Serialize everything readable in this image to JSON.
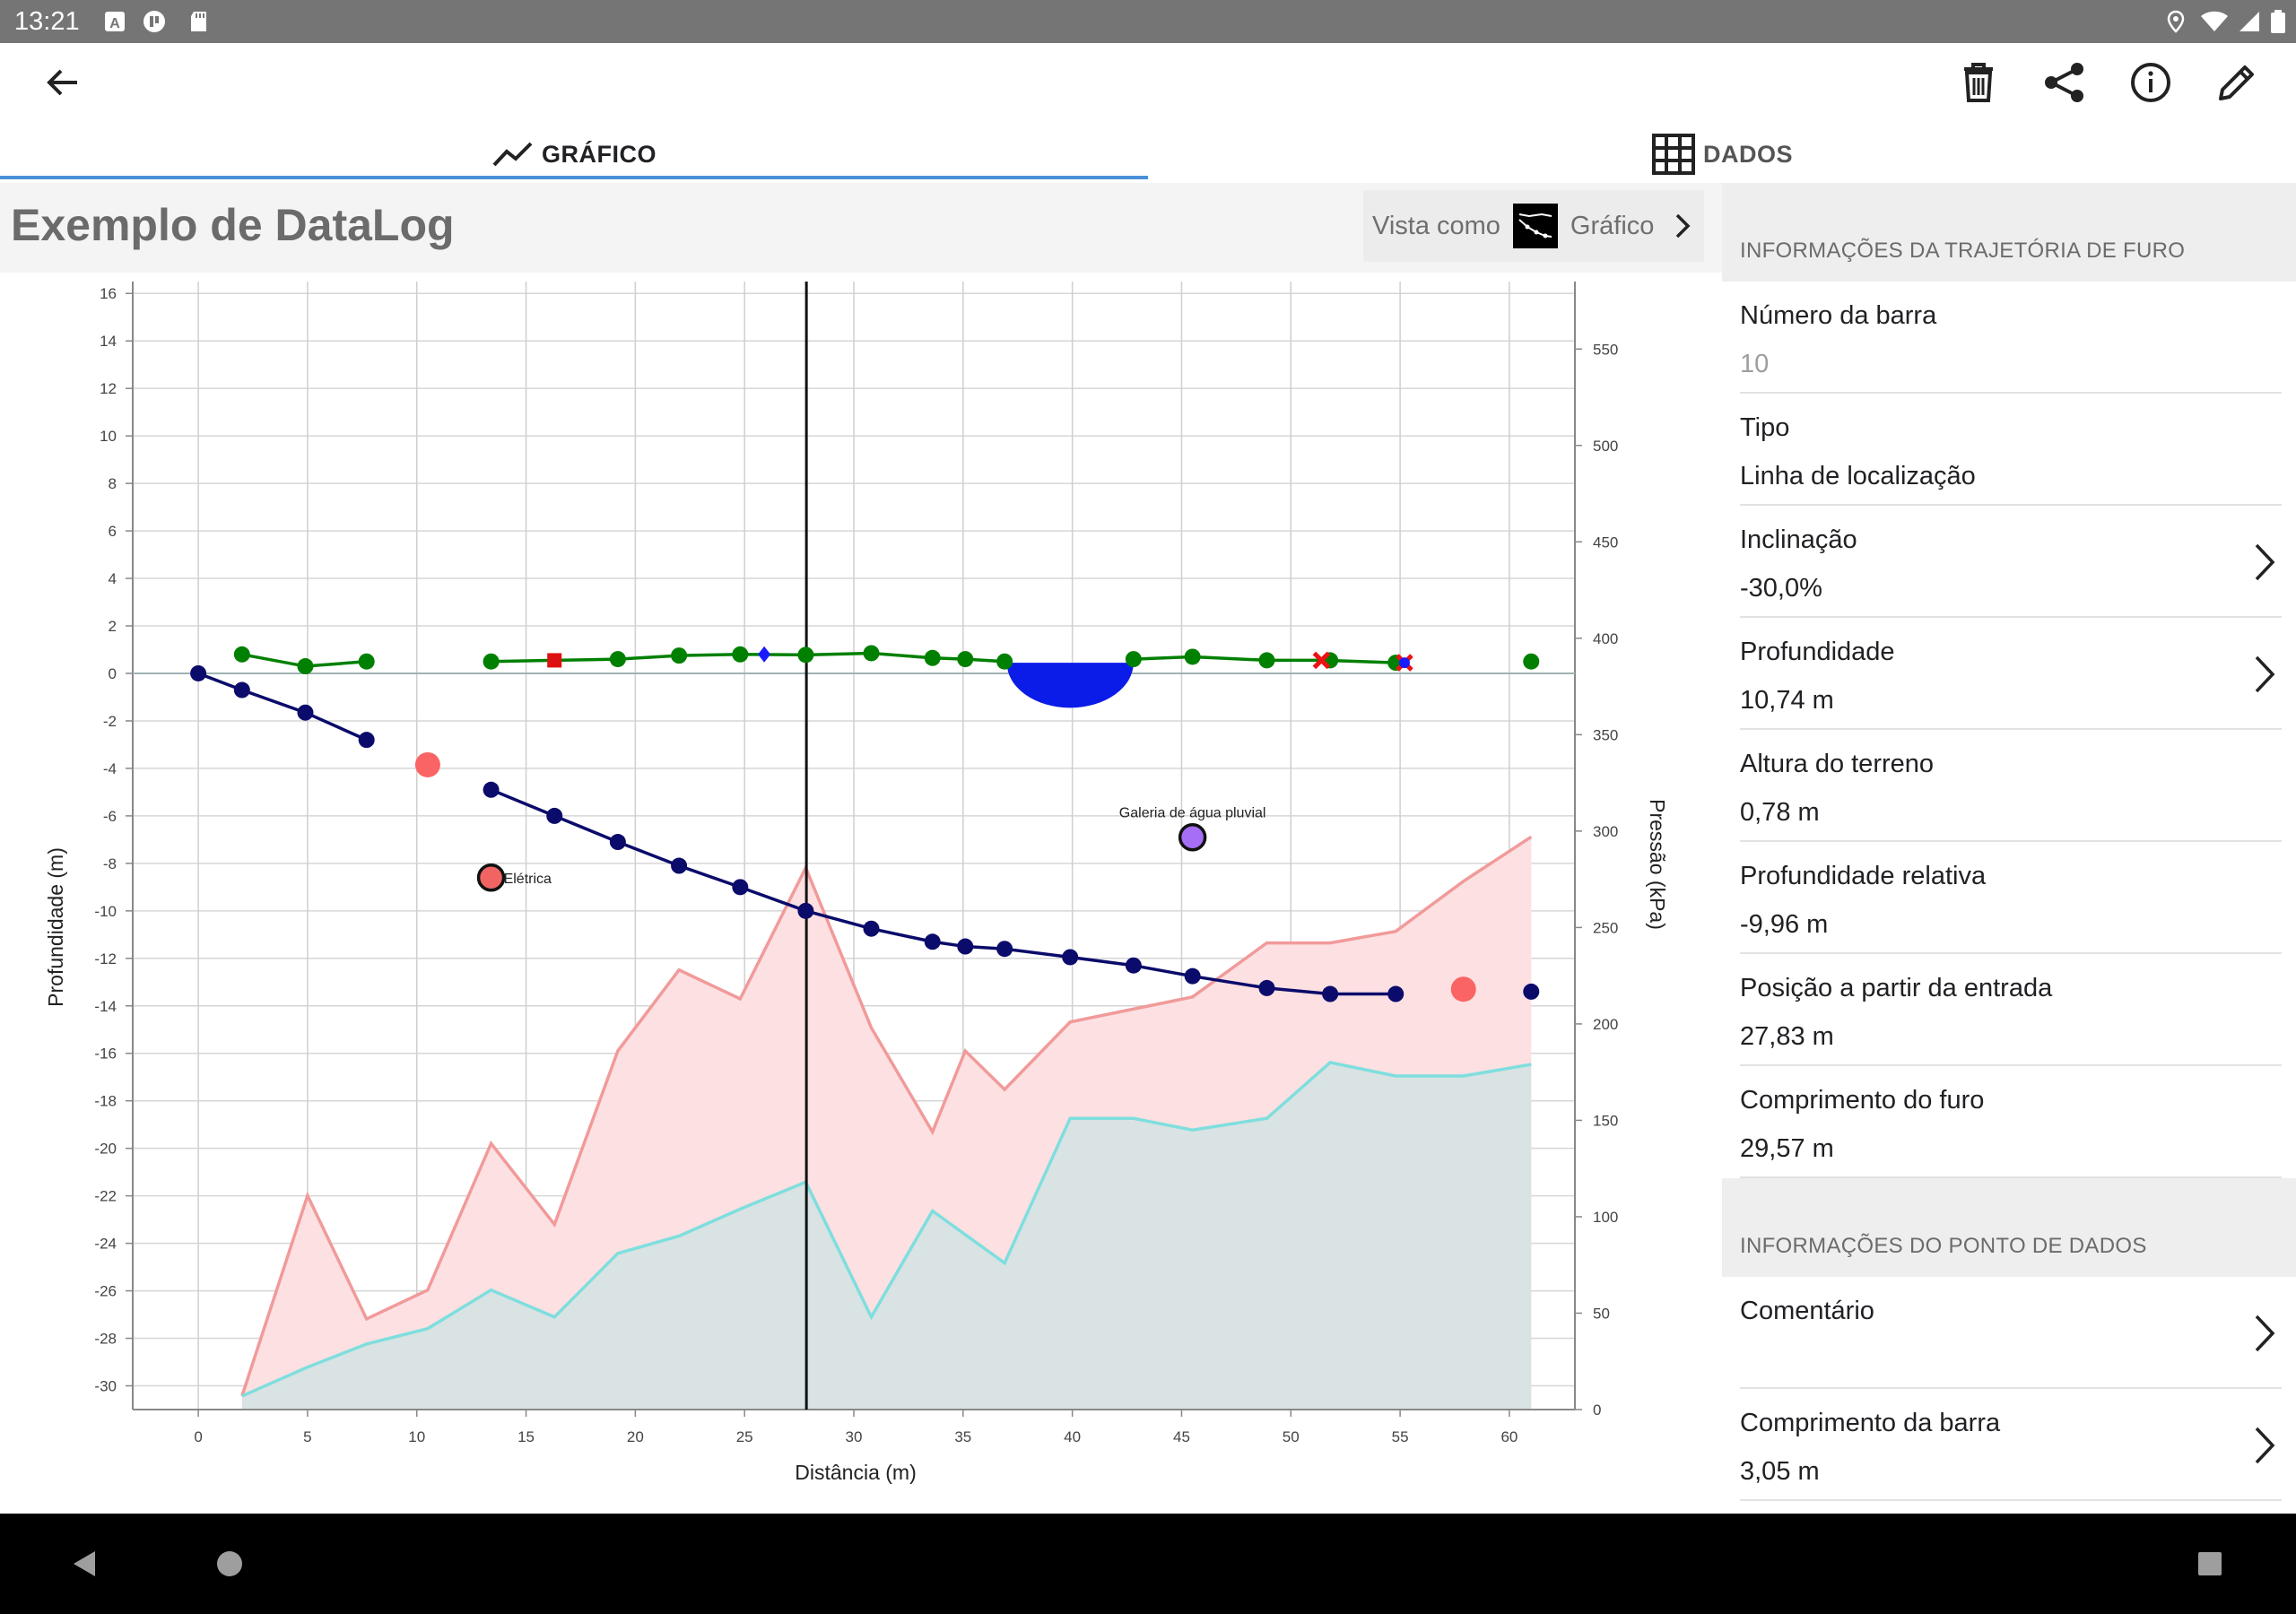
{
  "status": {
    "time": "13:21"
  },
  "appbar": {
    "back": "arrow-back-icon",
    "actions": [
      "delete-icon",
      "share-icon",
      "info-icon",
      "edit-icon"
    ]
  },
  "tabs": [
    {
      "label": "GRÁFICO",
      "icon": "line-chart-icon",
      "selected": true
    },
    {
      "label": "DADOS",
      "icon": "grid-icon",
      "selected": false
    }
  ],
  "header": {
    "title": "Exemplo de DataLog",
    "view_as_label": "Vista como",
    "view_as_value": "Gráfico"
  },
  "sidepanel": {
    "section1_title": "INFORMAÇÕES DA TRAJETÓRIA DE FURO",
    "section1": [
      {
        "label": "Número da barra",
        "value": "10",
        "muted": true,
        "chevron": false
      },
      {
        "label": "Tipo",
        "value": "Linha de localização",
        "chevron": false
      },
      {
        "label": "Inclinação",
        "value": "-30,0%",
        "chevron": true
      },
      {
        "label": "Profundidade",
        "value": "10,74 m",
        "chevron": true
      },
      {
        "label": "Altura do terreno",
        "value": "0,78 m",
        "chevron": false
      },
      {
        "label": "Profundidade relativa",
        "value": "-9,96 m",
        "chevron": false
      },
      {
        "label": "Posição a partir da entrada",
        "value": "27,83 m",
        "chevron": false
      },
      {
        "label": "Comprimento do furo",
        "value": "29,57 m",
        "chevron": false
      }
    ],
    "section2_title": "INFORMAÇÕES DO PONTO DE DADOS",
    "section2": [
      {
        "label": "Comentário",
        "value": "",
        "chevron": true
      },
      {
        "label": "Comprimento da barra",
        "value": "3,05 m",
        "chevron": true
      }
    ]
  },
  "chart_data": {
    "type": "line",
    "xlabel": "Distância (m)",
    "ylabel": "Profundidade (m)",
    "y2label": "Pressão (kPa)",
    "xlim": [
      -3,
      63
    ],
    "ylim": [
      -31,
      16.5
    ],
    "y2lim": [
      0,
      585
    ],
    "xticks": [
      0,
      5,
      10,
      15,
      20,
      25,
      30,
      35,
      40,
      45,
      50,
      55,
      60
    ],
    "yticks": [
      16,
      14,
      12,
      10,
      8,
      6,
      4,
      2,
      0,
      -2,
      -4,
      -6,
      -8,
      -10,
      -12,
      -14,
      -16,
      -18,
      -20,
      -22,
      -24,
      -26,
      -28,
      -30
    ],
    "y2ticks": [
      0,
      50,
      100,
      150,
      200,
      250,
      300,
      350,
      400,
      450,
      500,
      550
    ],
    "cursor_x": 27.83,
    "series": [
      {
        "role": "pressure-upper",
        "color": "#f19a9a",
        "fill": "#fde0e2",
        "axis": "right",
        "points": [
          [
            2,
            7
          ],
          [
            5,
            111
          ],
          [
            7.7,
            47
          ],
          [
            10.5,
            62
          ],
          [
            13.4,
            138
          ],
          [
            16.3,
            96
          ],
          [
            19.2,
            186
          ],
          [
            22,
            228
          ],
          [
            24.8,
            213
          ],
          [
            27.8,
            281
          ],
          [
            30.8,
            198
          ],
          [
            33.6,
            144
          ],
          [
            35.1,
            186
          ],
          [
            36.9,
            166
          ],
          [
            39.9,
            201
          ],
          [
            45.5,
            214
          ],
          [
            48.9,
            242
          ],
          [
            51.8,
            242
          ],
          [
            54.8,
            248
          ],
          [
            57.9,
            274
          ],
          [
            61,
            297
          ]
        ]
      },
      {
        "role": "pressure-lower",
        "color": "#7fdede",
        "fill": "#d9e3e3",
        "axis": "right",
        "points": [
          [
            2,
            7
          ],
          [
            5,
            22
          ],
          [
            7.7,
            34
          ],
          [
            10.5,
            42
          ],
          [
            13.4,
            62
          ],
          [
            16.3,
            48
          ],
          [
            19.2,
            81
          ],
          [
            22,
            90
          ],
          [
            24.8,
            104
          ],
          [
            27.8,
            118
          ],
          [
            30.8,
            48
          ],
          [
            33.6,
            103
          ],
          [
            36.9,
            76
          ],
          [
            39.9,
            151
          ],
          [
            42.8,
            151
          ],
          [
            45.5,
            145
          ],
          [
            48.9,
            151
          ],
          [
            51.8,
            180
          ],
          [
            54.8,
            173
          ],
          [
            57.9,
            173
          ],
          [
            61,
            179
          ]
        ]
      },
      {
        "role": "terrain",
        "color": "#008000",
        "axis": "left",
        "segments": [
          [
            [
              2,
              0.8
            ],
            [
              4.9,
              0.3
            ],
            [
              7.7,
              0.5
            ]
          ],
          [
            [
              13.4,
              0.5
            ],
            [
              16.3,
              0.55
            ],
            [
              19.2,
              0.6
            ],
            [
              22,
              0.75
            ],
            [
              24.8,
              0.8
            ],
            [
              27.8,
              0.78
            ],
            [
              30.8,
              0.85
            ],
            [
              33.6,
              0.65
            ],
            [
              35.1,
              0.6
            ],
            [
              36.9,
              0.5
            ]
          ],
          [
            [
              42.8,
              0.6
            ],
            [
              45.5,
              0.7
            ],
            [
              48.9,
              0.55
            ],
            [
              51.5,
              0.55
            ],
            [
              54.8,
              0.45
            ],
            [
              55.3,
              0.45
            ]
          ]
        ],
        "markers": [
          [
            2,
            0.8
          ],
          [
            4.9,
            0.3
          ],
          [
            7.7,
            0.5
          ],
          [
            13.4,
            0.5
          ],
          [
            19.2,
            0.6
          ],
          [
            22,
            0.75
          ],
          [
            24.8,
            0.8
          ],
          [
            27.8,
            0.78
          ],
          [
            30.8,
            0.85
          ],
          [
            33.6,
            0.65
          ],
          [
            35.1,
            0.6
          ],
          [
            36.9,
            0.5
          ],
          [
            42.8,
            0.6
          ],
          [
            45.5,
            0.7
          ],
          [
            48.9,
            0.55
          ],
          [
            51.8,
            0.55
          ],
          [
            54.8,
            0.45
          ],
          [
            61,
            0.5
          ]
        ]
      },
      {
        "role": "bore-path",
        "color": "#0b0b6b",
        "axis": "left",
        "segments": [
          [
            [
              0,
              0
            ],
            [
              2,
              -0.7
            ],
            [
              4.9,
              -1.65
            ],
            [
              7.7,
              -2.8
            ]
          ],
          [
            [
              13.4,
              -4.9
            ],
            [
              16.3,
              -6.0
            ],
            [
              19.2,
              -7.1
            ],
            [
              22,
              -8.1
            ],
            [
              24.8,
              -9.0
            ],
            [
              27.8,
              -10.0
            ],
            [
              30.8,
              -10.75
            ],
            [
              33.6,
              -11.3
            ],
            [
              35.1,
              -11.5
            ],
            [
              36.9,
              -11.6
            ],
            [
              39.9,
              -11.95
            ],
            [
              42.8,
              -12.3
            ],
            [
              45.5,
              -12.75
            ],
            [
              48.9,
              -13.25
            ],
            [
              51.8,
              -13.5
            ],
            [
              54.8,
              -13.5
            ]
          ]
        ],
        "markers": [
          [
            0,
            0
          ],
          [
            2,
            -0.7
          ],
          [
            4.9,
            -1.65
          ],
          [
            7.7,
            -2.8
          ],
          [
            13.4,
            -4.9
          ],
          [
            16.3,
            -6.0
          ],
          [
            19.2,
            -7.1
          ],
          [
            22,
            -8.1
          ],
          [
            24.8,
            -9.0
          ],
          [
            27.8,
            -10.0
          ],
          [
            30.8,
            -10.75
          ],
          [
            33.6,
            -11.3
          ],
          [
            35.1,
            -11.5
          ],
          [
            36.9,
            -11.6
          ],
          [
            39.9,
            -11.95
          ],
          [
            42.8,
            -12.3
          ],
          [
            45.5,
            -12.75
          ],
          [
            48.9,
            -13.25
          ],
          [
            51.8,
            -13.5
          ],
          [
            54.8,
            -13.5
          ],
          [
            61,
            -13.4
          ]
        ]
      }
    ],
    "special_markers": [
      {
        "kind": "red-square",
        "x": 16.3,
        "y": 0.55,
        "color": "#dd1111"
      },
      {
        "kind": "blue-diamond",
        "x": 25.9,
        "y": 0.8,
        "color": "#1a1aff"
      },
      {
        "kind": "red-cross",
        "x": 51.4,
        "y": 0.55,
        "color": "#ee1111"
      },
      {
        "kind": "red-cross",
        "x": 55.2,
        "y": 0.45,
        "color": "#ee1111"
      },
      {
        "kind": "blue-dot",
        "x": 55.2,
        "y": 0.45,
        "color": "#1a1aff"
      },
      {
        "kind": "salmon-dot",
        "x": 10.5,
        "y": -3.85,
        "color": "#fa6464"
      },
      {
        "kind": "salmon-dot",
        "x": 57.9,
        "y": -13.3,
        "color": "#fa6464"
      }
    ],
    "utilities": [
      {
        "label": "Elétrica",
        "x": 13.4,
        "y": -8.6,
        "color": "#f26464"
      },
      {
        "label": "Galeria de água pluvial",
        "x": 45.5,
        "y": -6.9,
        "color": "#a56ef5"
      }
    ],
    "water_feature": {
      "x_start": 37,
      "x_end": 42.8,
      "y_top": 0.45,
      "depth": 1.9,
      "color": "#0b1be8"
    }
  }
}
